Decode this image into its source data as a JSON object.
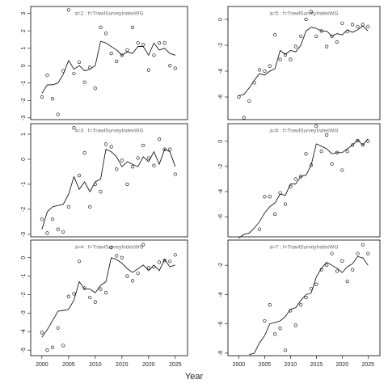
{
  "x_label": "Year",
  "chart_data": [
    {
      "type": "points_fit",
      "title": "a=2  :  f=TrawlSurveyIndexWG",
      "x": [
        2000,
        2001,
        2002,
        2003,
        2004,
        2005,
        2006,
        2007,
        2008,
        2009,
        2010,
        2011,
        2012,
        2013,
        2014,
        2015,
        2016,
        2017,
        2018,
        2019,
        2020,
        2021,
        2022,
        2023,
        2024,
        2025
      ],
      "points": [
        -1.8,
        -0.55,
        -1.9,
        -2.8,
        -0.3,
        3.2,
        -0.45,
        0.2,
        -0.95,
        -0.1,
        -1.3,
        2.2,
        1.85,
        0.7,
        0.25,
        0.6,
        0.9,
        2.2,
        1.3,
        1.2,
        -0.25,
        0.6,
        1.3,
        1.3,
        0,
        -0.15
      ],
      "fit": [
        -1.6,
        -1.1,
        -1.1,
        -1.0,
        -0.5,
        0.3,
        -0.2,
        0,
        -0.3,
        -0.2,
        0,
        1.4,
        1.3,
        1.1,
        0.9,
        0.6,
        0.8,
        0.7,
        1.1,
        1.1,
        0.6,
        1.3,
        0.9,
        1.0,
        0.7,
        0.6
      ],
      "xlim": [
        1997.9,
        2027.3
      ],
      "ylim": [
        -3.1,
        3.4
      ],
      "yticks": [
        -3,
        -2,
        -1,
        0,
        1,
        2,
        3
      ]
    },
    {
      "type": "points_fit",
      "title": "a=5  :  f=TrawlSurveyIndexWG",
      "x": [
        2000,
        2001,
        2002,
        2003,
        2004,
        2005,
        2006,
        2007,
        2008,
        2009,
        2010,
        2011,
        2012,
        2013,
        2014,
        2015,
        2016,
        2017,
        2018,
        2019,
        2020,
        2021,
        2022,
        2023,
        2024,
        2025
      ],
      "points": [
        -6.0,
        -7.6,
        -6.3,
        -4.9,
        -3.9,
        -4.0,
        -3.6,
        -1.2,
        -3.1,
        -2.75,
        -3.1,
        -2.1,
        -1.3,
        0,
        0.6,
        -1.3,
        -0.9,
        -2.1,
        -1.3,
        -1.75,
        -0.3,
        -0.95,
        -0.4,
        -0.55,
        -0.4,
        -0.55
      ],
      "fit": [
        -5.9,
        -5.8,
        -5.3,
        -4.7,
        -4.2,
        -4.3,
        -4.0,
        -3.8,
        -2.4,
        -2.7,
        -2.4,
        -2.5,
        -2.0,
        -0.9,
        -0.6,
        -0.7,
        -0.9,
        -0.9,
        -1.3,
        -1.1,
        -1.2,
        -0.8,
        -1.0,
        -0.8,
        -0.5,
        -0.9
      ],
      "xlim": [
        1997.9,
        2027.3
      ],
      "ylim": [
        -7.75,
        1.0
      ],
      "yticks": [
        -6,
        -4,
        -2,
        0
      ]
    },
    {
      "type": "points_fit",
      "title": "a=3  :  f=TrawlSurveyIndexWG",
      "x": [
        2000,
        2001,
        2002,
        2003,
        2004,
        2005,
        2006,
        2007,
        2008,
        2009,
        2010,
        2011,
        2012,
        2013,
        2014,
        2015,
        2016,
        2017,
        2018,
        2019,
        2020,
        2021,
        2022,
        2023,
        2024,
        2025
      ],
      "points": [
        -2.4,
        -2.95,
        -2.4,
        -2.8,
        -2.9,
        -1.9,
        1.25,
        -0.65,
        0.25,
        -1.9,
        -1.0,
        -1.3,
        0.6,
        0.5,
        -0.4,
        -0.05,
        -1.0,
        -0.3,
        0.05,
        0.55,
        0.05,
        -0.25,
        0.8,
        0.4,
        0.4,
        -0.6
      ],
      "fit": [
        -2.8,
        -2.1,
        -1.9,
        -1.85,
        -1.8,
        -1.4,
        -0.7,
        -1.2,
        -0.9,
        -1.3,
        -0.9,
        -0.8,
        0.4,
        0.3,
        0.1,
        -0.3,
        -0.1,
        -0.2,
        -0.3,
        0.1,
        -0.1,
        0.3,
        -0.2,
        0.4,
        0.3,
        -0.3
      ],
      "xlim": [
        1997.9,
        2027.3
      ],
      "ylim": [
        -3.1,
        1.42
      ],
      "yticks": [
        -3,
        -2,
        -1,
        0,
        1
      ]
    },
    {
      "type": "points_fit",
      "title": "a=6  :  f=TrawlSurveyIndexWG",
      "x": [
        2000,
        2001,
        2002,
        2003,
        2004,
        2005,
        2006,
        2007,
        2008,
        2009,
        2010,
        2011,
        2012,
        2013,
        2014,
        2015,
        2016,
        2017,
        2018,
        2019,
        2020,
        2021,
        2022,
        2023,
        2024,
        2025
      ],
      "points": [
        null,
        null,
        null,
        null,
        -7.0,
        -4.4,
        -4.4,
        -5.8,
        -4.1,
        -5.0,
        -3.6,
        -3.0,
        -2.8,
        -1.0,
        -1.9,
        1.2,
        -0.8,
        0.5,
        -1.8,
        -0.9,
        -2.3,
        -0.8,
        -0.3,
        0.05,
        -0.3,
        0.0
      ],
      "fit": [
        -7.7,
        -7.4,
        -7.3,
        -6.9,
        -6.4,
        -5.7,
        -5.2,
        -4.9,
        -4.2,
        -4.3,
        -3.4,
        -3.4,
        -2.8,
        -2.7,
        -1.9,
        -0.2,
        -0.4,
        -0.6,
        -1.0,
        -0.9,
        -0.9,
        -0.6,
        -0.3,
        0.1,
        -0.3,
        0.2
      ],
      "xlim": [
        1997.9,
        2027.3
      ],
      "ylim": [
        -7.6,
        1.4
      ],
      "yticks": [
        -6,
        -4,
        -2,
        0
      ]
    },
    {
      "type": "points_fit",
      "title": "a=4  :  f=TrawlSurveyIndexWG",
      "x": [
        2000,
        2001,
        2002,
        2003,
        2004,
        2005,
        2006,
        2007,
        2008,
        2009,
        2010,
        2011,
        2012,
        2013,
        2014,
        2015,
        2016,
        2017,
        2018,
        2019,
        2020,
        2021,
        2022,
        2023,
        2024,
        2025
      ],
      "points": [
        -4.05,
        -5.0,
        -4.85,
        -3.8,
        -4.75,
        -2.1,
        -1.95,
        -0.2,
        -1.65,
        -2.15,
        -2.4,
        -1.7,
        -1.9,
        0.55,
        0.1,
        0,
        -1.0,
        -1.25,
        -0.85,
        0.7,
        -0.55,
        -0.5,
        -0.25,
        -0.15,
        -0.2,
        0.15
      ],
      "fit": [
        -4.3,
        -3.9,
        -3.4,
        -2.9,
        -2.85,
        -2.8,
        -2.3,
        -1.3,
        -1.7,
        -1.7,
        -1.9,
        -1.5,
        -1.3,
        0,
        -0.1,
        -0.3,
        -0.6,
        -0.8,
        -0.6,
        -0.4,
        -0.7,
        -0.4,
        -0.7,
        -0.1,
        -0.5,
        -0.4
      ],
      "xlim": [
        1997.9,
        2027.3
      ],
      "ylim": [
        -5.3,
        0.95
      ],
      "yticks": [
        -5,
        -4,
        -3,
        -2,
        -1,
        0
      ],
      "xticks": [
        2000,
        2005,
        2010,
        2015,
        2020,
        2025
      ]
    },
    {
      "type": "points_fit",
      "title": "a=7  :  f=TrawlSurveyIndexWG",
      "x": [
        2000,
        2001,
        2002,
        2003,
        2004,
        2005,
        2006,
        2007,
        2008,
        2009,
        2010,
        2011,
        2012,
        2013,
        2014,
        2015,
        2016,
        2017,
        2018,
        2019,
        2020,
        2021,
        2022,
        2023,
        2024,
        2025
      ],
      "points": [
        null,
        null,
        null,
        null,
        null,
        -5.8,
        -4.7,
        -6.7,
        -6.3,
        -7.8,
        -5.1,
        -6.1,
        -4.7,
        -4.2,
        -3.6,
        -3.3,
        -2.3,
        -2.0,
        -1.2,
        -2.4,
        -1.7,
        -3.1,
        -2.3,
        -1.2,
        -0.6,
        -1.2
      ],
      "fit": [
        null,
        null,
        -8.1,
        -8.0,
        -7.3,
        -6.8,
        -6.0,
        -5.9,
        -5.8,
        -5.5,
        -5.0,
        -4.9,
        -4.4,
        -4.0,
        -3.9,
        -2.8,
        -2.2,
        -1.8,
        -2.0,
        -2.2,
        -2.5,
        -2.1,
        -1.9,
        -1.4,
        -1.5,
        -2.0
      ],
      "xlim": [
        1997.9,
        2027.3
      ],
      "ylim": [
        -8.17,
        -0.28
      ],
      "yticks": [
        -8,
        -6,
        -4,
        -2
      ],
      "xticks": [
        2000,
        2005,
        2010,
        2015,
        2020,
        2025
      ]
    }
  ]
}
